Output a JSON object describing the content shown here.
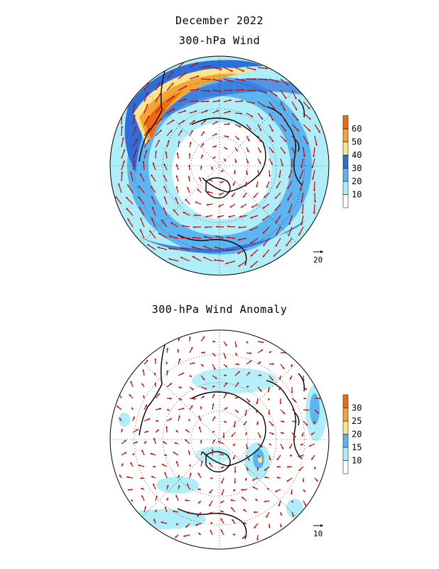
{
  "titles": {
    "main": "December 2022",
    "panel1": "300-hPa Wind",
    "panel2": "300-hPa Wind Anomaly"
  },
  "panel1": {
    "colorbar": {
      "labels": [
        "10",
        "20",
        "30",
        "40",
        "50",
        "60"
      ],
      "colors": [
        "#ffffff",
        "#aeeef8",
        "#5bb5f0",
        "#2f6ed8",
        "#fbe58b",
        "#f6a436",
        "#ef6a10"
      ]
    },
    "reference_vector_label": "20"
  },
  "panel2": {
    "colorbar": {
      "labels": [
        "10",
        "15",
        "20",
        "25",
        "30"
      ],
      "colors": [
        "#ffffff",
        "#aeeef8",
        "#5bb5f0",
        "#fbe58b",
        "#f6a436",
        "#ef6a10"
      ]
    },
    "reference_vector_label": "10"
  },
  "style": {
    "arrow_color": "#cc0000",
    "coast_color": "#000000"
  }
}
